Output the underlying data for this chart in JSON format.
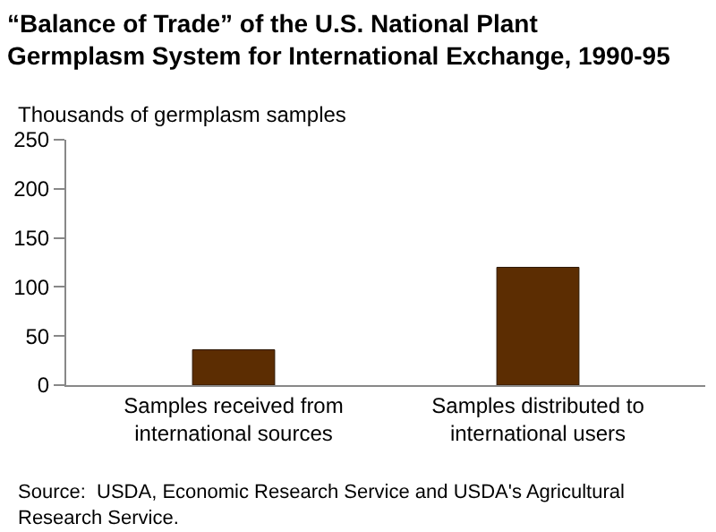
{
  "chart_data": {
    "type": "bar",
    "title": "“Balance of Trade” of the U.S. National Plant Germplasm System for International Exchange, 1990-95",
    "ylabel": "Thousands of germplasm samples",
    "categories": [
      "Samples received from international sources",
      "Samples distributed to international users"
    ],
    "values": [
      36,
      120
    ],
    "color": "#5c2d02",
    "ylim": [
      0,
      250
    ],
    "yticks": [
      0,
      50,
      100,
      150,
      200,
      250
    ],
    "grid": false,
    "annotations": [
      "Source:  USDA, Economic Research Service and USDA's Agricultural Research Service."
    ]
  }
}
